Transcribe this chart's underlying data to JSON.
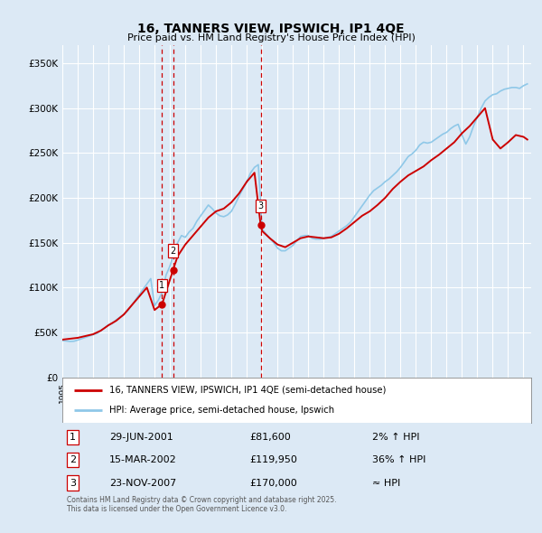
{
  "title": "16, TANNERS VIEW, IPSWICH, IP1 4QE",
  "subtitle": "Price paid vs. HM Land Registry's House Price Index (HPI)",
  "ylabel_ticks": [
    "£0",
    "£50K",
    "£100K",
    "£150K",
    "£200K",
    "£250K",
    "£300K",
    "£350K"
  ],
  "ytick_values": [
    0,
    50000,
    100000,
    150000,
    200000,
    250000,
    300000,
    350000
  ],
  "ylim": [
    0,
    370000
  ],
  "xlim_start": 1995.0,
  "xlim_end": 2025.5,
  "background_color": "#dce9f5",
  "plot_bg_color": "#dce9f5",
  "grid_color": "#ffffff",
  "legend_label_red": "16, TANNERS VIEW, IPSWICH, IP1 4QE (semi-detached house)",
  "legend_label_blue": "HPI: Average price, semi-detached house, Ipswich",
  "transactions": [
    {
      "num": 1,
      "date": "29-JUN-2001",
      "price": 81600,
      "pct": "2% ↑ HPI",
      "x_year": 2001.49
    },
    {
      "num": 2,
      "date": "15-MAR-2002",
      "price": 119950,
      "pct": "36% ↑ HPI",
      "x_year": 2002.21
    },
    {
      "num": 3,
      "date": "23-NOV-2007",
      "price": 170000,
      "pct": "≈ HPI",
      "x_year": 2007.9
    }
  ],
  "footer": "Contains HM Land Registry data © Crown copyright and database right 2025.\nThis data is licensed under the Open Government Licence v3.0.",
  "hpi_years": [
    1995.0,
    1995.25,
    1995.5,
    1995.75,
    1996.0,
    1996.25,
    1996.5,
    1996.75,
    1997.0,
    1997.25,
    1997.5,
    1997.75,
    1998.0,
    1998.25,
    1998.5,
    1998.75,
    1999.0,
    1999.25,
    1999.5,
    1999.75,
    2000.0,
    2000.25,
    2000.5,
    2000.75,
    2001.0,
    2001.25,
    2001.5,
    2001.75,
    2002.0,
    2002.25,
    2002.5,
    2002.75,
    2003.0,
    2003.25,
    2003.5,
    2003.75,
    2004.0,
    2004.25,
    2004.5,
    2004.75,
    2005.0,
    2005.25,
    2005.5,
    2005.75,
    2006.0,
    2006.25,
    2006.5,
    2006.75,
    2007.0,
    2007.25,
    2007.5,
    2007.75,
    2008.0,
    2008.25,
    2008.5,
    2008.75,
    2009.0,
    2009.25,
    2009.5,
    2009.75,
    2010.0,
    2010.25,
    2010.5,
    2010.75,
    2011.0,
    2011.25,
    2011.5,
    2011.75,
    2012.0,
    2012.25,
    2012.5,
    2012.75,
    2013.0,
    2013.25,
    2013.5,
    2013.75,
    2014.0,
    2014.25,
    2014.5,
    2014.75,
    2015.0,
    2015.25,
    2015.5,
    2015.75,
    2016.0,
    2016.25,
    2016.5,
    2016.75,
    2017.0,
    2017.25,
    2017.5,
    2017.75,
    2018.0,
    2018.25,
    2018.5,
    2018.75,
    2019.0,
    2019.25,
    2019.5,
    2019.75,
    2020.0,
    2020.25,
    2020.5,
    2020.75,
    2021.0,
    2021.25,
    2021.5,
    2021.75,
    2022.0,
    2022.25,
    2022.5,
    2022.75,
    2023.0,
    2023.25,
    2023.5,
    2023.75,
    2024.0,
    2024.25,
    2024.5,
    2024.75,
    2025.0,
    2025.25
  ],
  "hpi_vals": [
    41000,
    40500,
    40000,
    40200,
    41500,
    43000,
    44500,
    46000,
    47500,
    49000,
    52000,
    55000,
    58500,
    60000,
    64000,
    67000,
    70000,
    74000,
    80000,
    86000,
    92000,
    98000,
    104000,
    110000,
    80000,
    86000,
    95000,
    114000,
    124000,
    138000,
    150000,
    158000,
    156000,
    162000,
    166000,
    174000,
    180000,
    186000,
    192000,
    188000,
    183000,
    180000,
    179000,
    181000,
    185000,
    193000,
    202000,
    210000,
    218000,
    228000,
    234000,
    237000,
    165000,
    160000,
    155000,
    150000,
    144000,
    141000,
    141000,
    144000,
    147000,
    152000,
    157000,
    158000,
    158000,
    155000,
    154000,
    154000,
    155000,
    156000,
    157000,
    160000,
    163000,
    166000,
    169000,
    173000,
    179000,
    185000,
    191000,
    197000,
    203000,
    208000,
    211000,
    214000,
    218000,
    221000,
    225000,
    229000,
    234000,
    240000,
    246000,
    249000,
    253000,
    259000,
    262000,
    261000,
    262000,
    265000,
    268000,
    271000,
    273000,
    277000,
    280000,
    282000,
    270000,
    260000,
    268000,
    280000,
    290000,
    300000,
    308000,
    312000,
    315000,
    316000,
    319000,
    321000,
    322000,
    323000,
    323000,
    322000,
    325000,
    327000
  ],
  "red_years": [
    1995.0,
    1995.5,
    1996.0,
    1996.5,
    1997.0,
    1997.5,
    1998.0,
    1998.5,
    1999.0,
    1999.5,
    2000.0,
    2000.5,
    2001.0,
    2001.49,
    2002.21,
    2002.5,
    2003.0,
    2003.5,
    2004.0,
    2004.5,
    2005.0,
    2005.5,
    2006.0,
    2006.5,
    2007.0,
    2007.5,
    2007.9,
    2008.0,
    2008.5,
    2009.0,
    2009.5,
    2010.0,
    2010.5,
    2011.0,
    2011.5,
    2012.0,
    2012.5,
    2013.0,
    2013.5,
    2014.0,
    2014.5,
    2015.0,
    2015.5,
    2016.0,
    2016.5,
    2017.0,
    2017.5,
    2018.0,
    2018.5,
    2019.0,
    2019.5,
    2020.0,
    2020.5,
    2021.0,
    2021.5,
    2022.0,
    2022.5,
    2023.0,
    2023.5,
    2024.0,
    2024.5,
    2025.0,
    2025.25
  ],
  "red_vals": [
    42000,
    43000,
    44000,
    46000,
    48000,
    52000,
    58000,
    63000,
    70000,
    80000,
    90000,
    100000,
    75000,
    81600,
    119950,
    135000,
    148000,
    158000,
    168000,
    178000,
    185000,
    188000,
    195000,
    205000,
    218000,
    228000,
    170000,
    163000,
    155000,
    148000,
    145000,
    150000,
    155000,
    157000,
    156000,
    155000,
    156000,
    160000,
    166000,
    173000,
    180000,
    185000,
    192000,
    200000,
    210000,
    218000,
    225000,
    230000,
    235000,
    242000,
    248000,
    255000,
    262000,
    272000,
    280000,
    290000,
    300000,
    265000,
    255000,
    262000,
    270000,
    268000,
    265000
  ]
}
